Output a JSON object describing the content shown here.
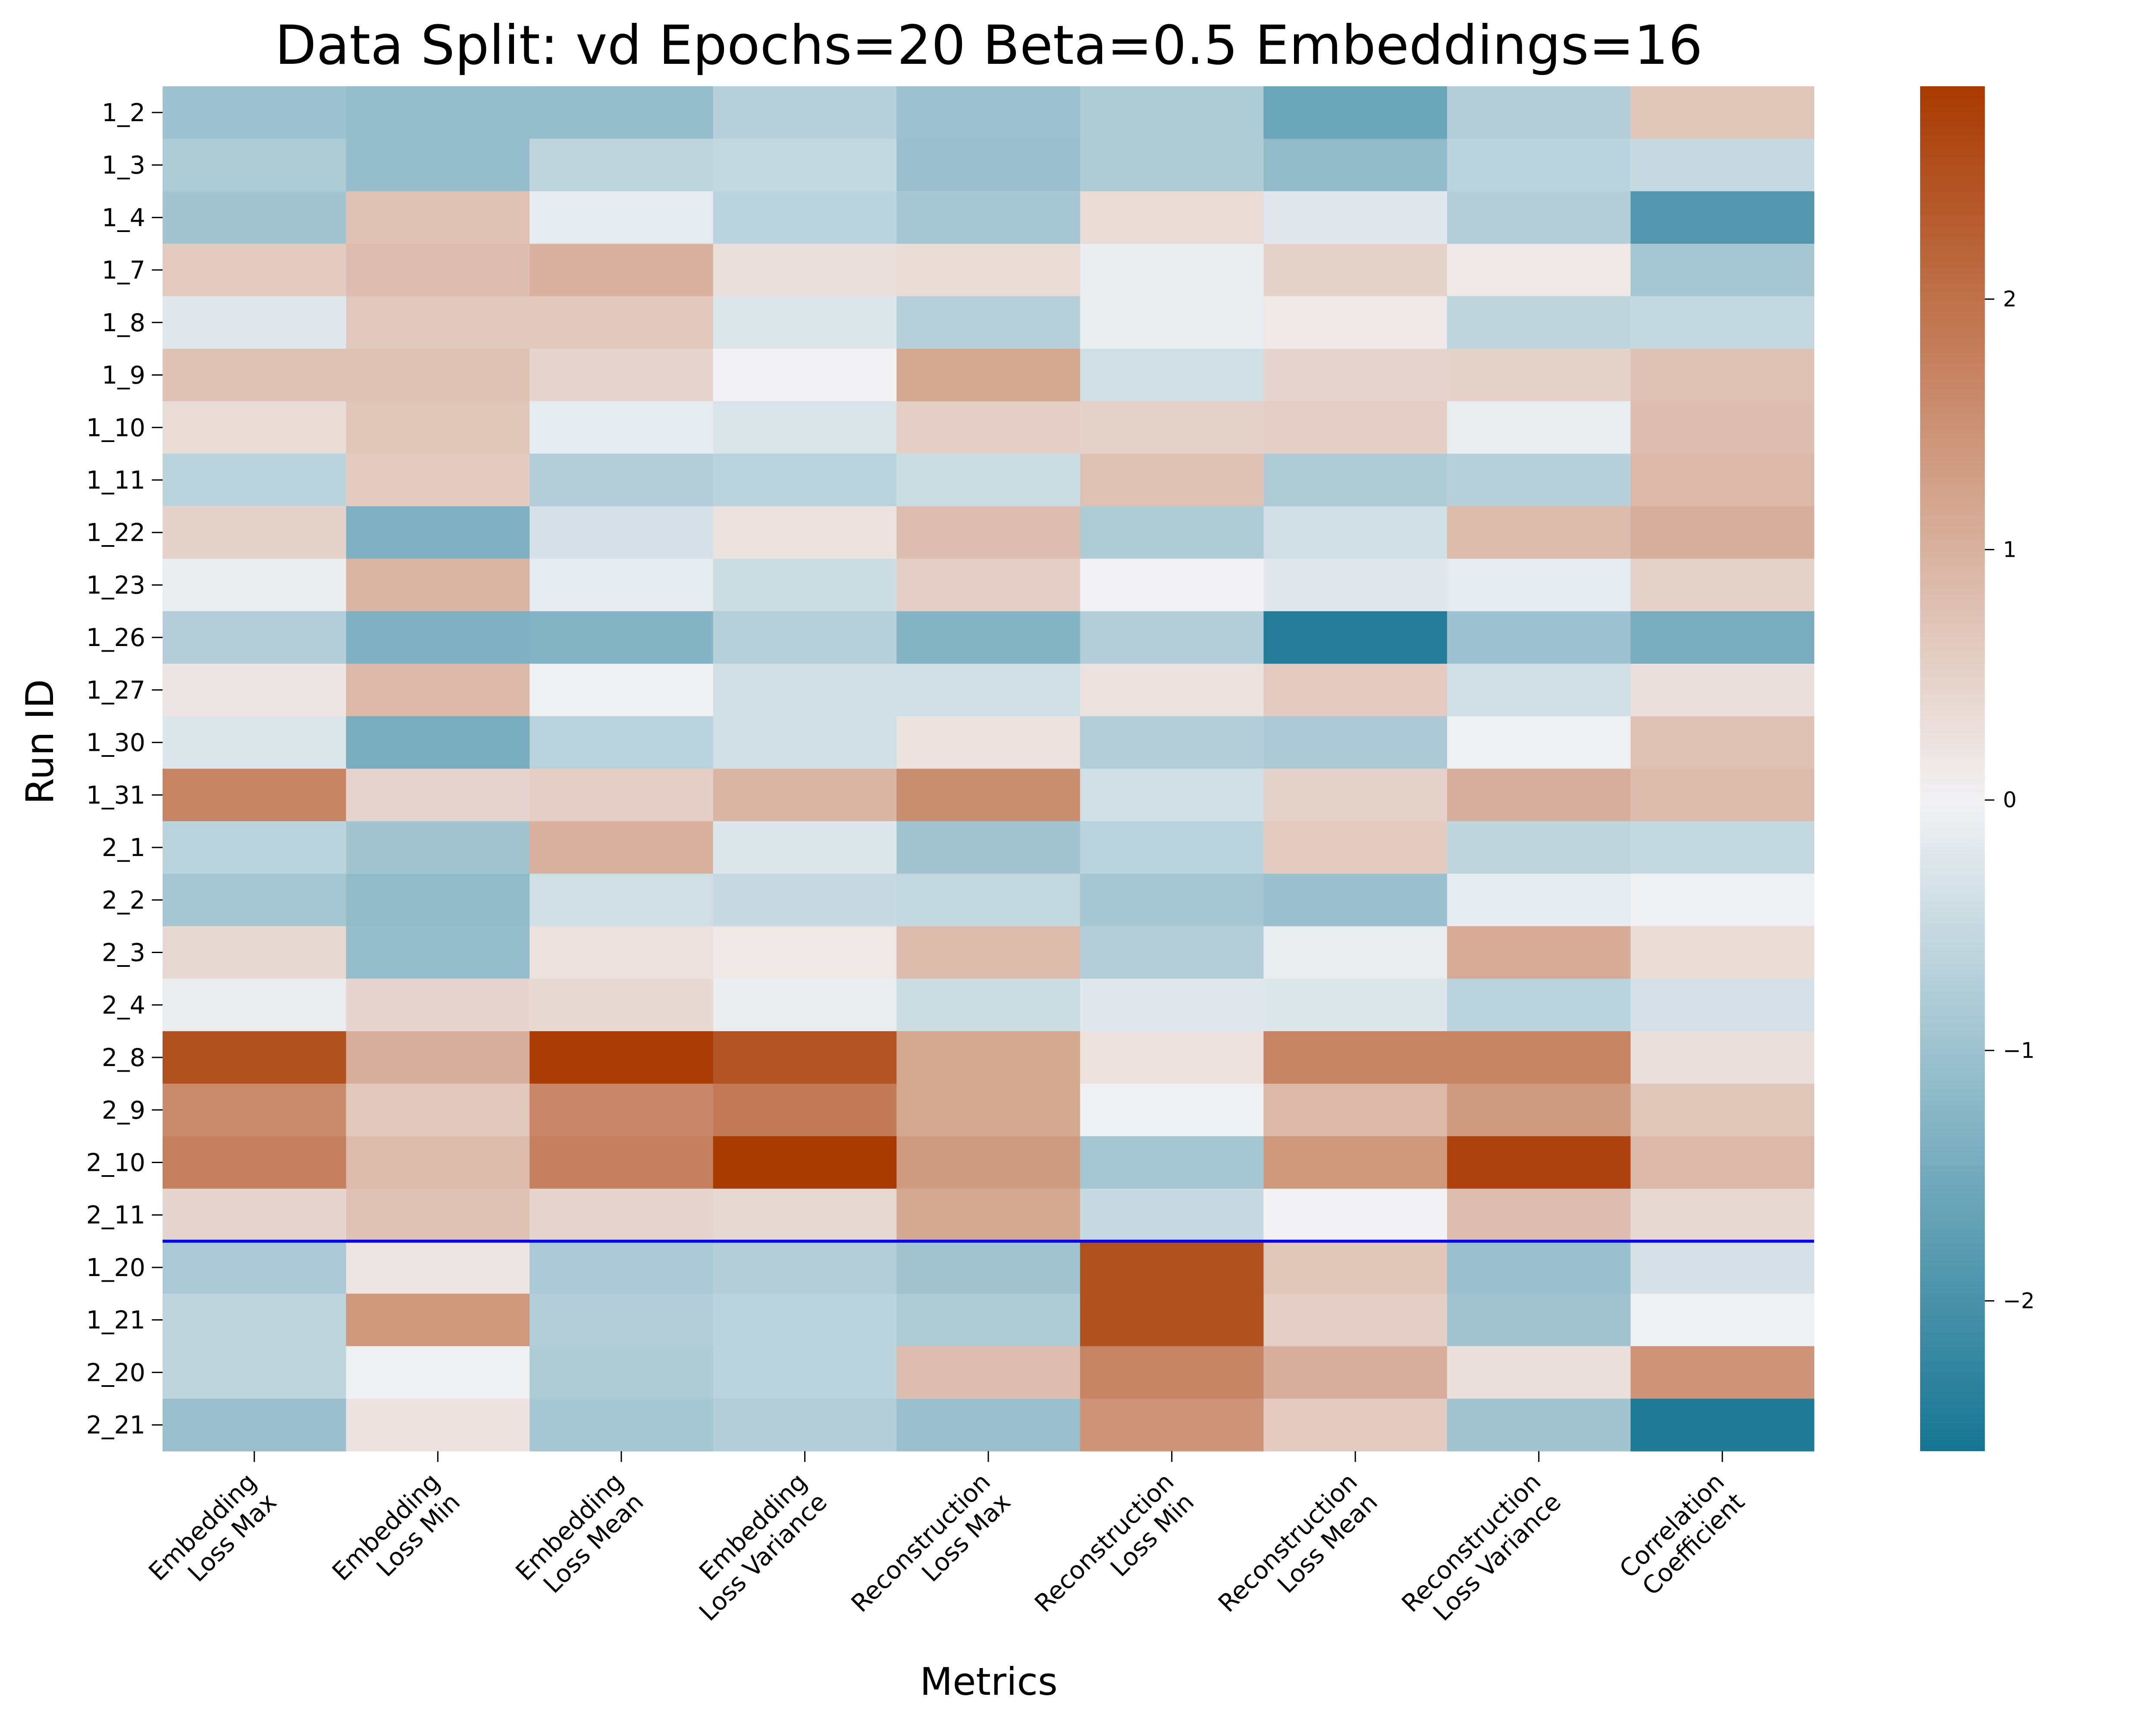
{
  "chart_data": {
    "type": "heatmap",
    "title": "Data Split: vd Epochs=20 Beta=0.5 Embeddings=16",
    "xlabel": "Metrics",
    "ylabel": "Run ID",
    "columns": [
      [
        "Embedding",
        "Loss Max"
      ],
      [
        "Embedding",
        "Loss Min"
      ],
      [
        "Embedding",
        "Loss Mean"
      ],
      [
        "Embedding",
        "Loss Variance"
      ],
      [
        "Reconstruction",
        "Loss Max"
      ],
      [
        "Reconstruction",
        "Loss Min"
      ],
      [
        "Reconstruction",
        "Loss Mean"
      ],
      [
        "Reconstruction",
        "Loss Variance"
      ],
      [
        "Correlation",
        "Coefficient"
      ]
    ],
    "rows": [
      "1_2",
      "1_3",
      "1_4",
      "1_7",
      "1_8",
      "1_9",
      "1_10",
      "1_11",
      "1_22",
      "1_23",
      "1_26",
      "1_27",
      "1_30",
      "1_31",
      "2_1",
      "2_2",
      "2_3",
      "2_4",
      "2_8",
      "2_9",
      "2_10",
      "2_11",
      "1_20",
      "1_21",
      "2_20",
      "2_21"
    ],
    "values": [
      [
        -1.0,
        -1.1,
        -1.1,
        -0.7,
        -1.0,
        -0.8,
        -1.6,
        -0.75,
        0.7
      ],
      [
        -0.8,
        -1.1,
        -0.6,
        -0.55,
        -1.05,
        -0.8,
        -1.15,
        -0.65,
        -0.5
      ],
      [
        -0.95,
        0.75,
        -0.15,
        -0.65,
        -0.9,
        0.35,
        -0.2,
        -0.75,
        -1.9
      ],
      [
        0.6,
        0.8,
        1.0,
        0.3,
        0.35,
        -0.1,
        0.5,
        0.15,
        -0.9
      ],
      [
        -0.2,
        0.65,
        0.65,
        -0.25,
        -0.7,
        -0.1,
        0.15,
        -0.6,
        -0.55
      ],
      [
        0.75,
        0.75,
        0.45,
        0.0,
        1.15,
        -0.4,
        0.45,
        0.5,
        0.75
      ],
      [
        0.35,
        0.7,
        -0.15,
        -0.3,
        0.55,
        0.5,
        0.55,
        -0.1,
        0.8
      ],
      [
        -0.65,
        0.6,
        -0.75,
        -0.65,
        -0.45,
        0.75,
        -0.8,
        -0.7,
        0.9
      ],
      [
        0.5,
        -1.35,
        -0.35,
        0.25,
        0.8,
        -0.8,
        -0.4,
        0.85,
        1.05
      ],
      [
        -0.1,
        0.95,
        -0.15,
        -0.45,
        0.55,
        0.0,
        -0.2,
        -0.15,
        0.5
      ],
      [
        -0.75,
        -1.35,
        -1.3,
        -0.7,
        -1.3,
        -0.75,
        -2.45,
        -1.0,
        -1.45
      ],
      [
        0.2,
        0.9,
        -0.05,
        -0.4,
        -0.4,
        0.25,
        0.6,
        -0.4,
        0.3
      ],
      [
        -0.25,
        -1.45,
        -0.65,
        -0.4,
        0.25,
        -0.75,
        -0.85,
        -0.05,
        0.75
      ],
      [
        1.7,
        0.45,
        0.55,
        0.95,
        1.55,
        -0.4,
        0.5,
        1.05,
        0.85
      ],
      [
        -0.65,
        -0.95,
        1.0,
        -0.25,
        -0.95,
        -0.65,
        0.6,
        -0.6,
        -0.55
      ],
      [
        -0.9,
        -1.15,
        -0.4,
        -0.5,
        -0.55,
        -0.9,
        -1.05,
        -0.15,
        -0.05
      ],
      [
        0.4,
        -1.1,
        0.25,
        0.15,
        0.85,
        -0.75,
        -0.1,
        1.1,
        0.35
      ],
      [
        -0.1,
        0.45,
        0.4,
        -0.1,
        -0.45,
        -0.2,
        -0.25,
        -0.65,
        -0.35
      ],
      [
        2.5,
        1.05,
        2.8,
        2.45,
        1.15,
        0.25,
        1.7,
        1.7,
        0.3
      ],
      [
        1.6,
        0.65,
        1.65,
        1.85,
        1.15,
        -0.05,
        0.9,
        1.35,
        0.7
      ],
      [
        1.75,
        0.85,
        1.75,
        2.95,
        1.35,
        -0.9,
        1.4,
        2.7,
        0.9
      ],
      [
        0.45,
        0.75,
        0.45,
        0.4,
        1.15,
        -0.5,
        0.0,
        0.8,
        0.4
      ],
      [
        -0.85,
        0.2,
        -0.85,
        -0.75,
        -0.95,
        2.5,
        0.7,
        -1.05,
        -0.35
      ],
      [
        -0.6,
        1.4,
        -0.75,
        -0.65,
        -0.8,
        2.5,
        0.55,
        -0.95,
        -0.05
      ],
      [
        -0.6,
        -0.05,
        -0.8,
        -0.65,
        0.8,
        1.7,
        1.05,
        0.3,
        1.45
      ],
      [
        -1.05,
        0.25,
        -0.9,
        -0.75,
        -1.05,
        1.45,
        0.6,
        -0.95,
        -2.5
      ]
    ],
    "separator_after_row": "2_11",
    "separator_color": "#0000ff",
    "colorbar": {
      "min": -2.6,
      "max": 2.85,
      "ticks": [
        -2,
        -1,
        0,
        1,
        2
      ],
      "tick_labels": [
        "−2",
        "−1",
        "0",
        "1",
        "2"
      ],
      "low_color": "#177593",
      "mid_color": "#f2f2f4",
      "high_color": "#a93a02"
    },
    "grid": false
  }
}
